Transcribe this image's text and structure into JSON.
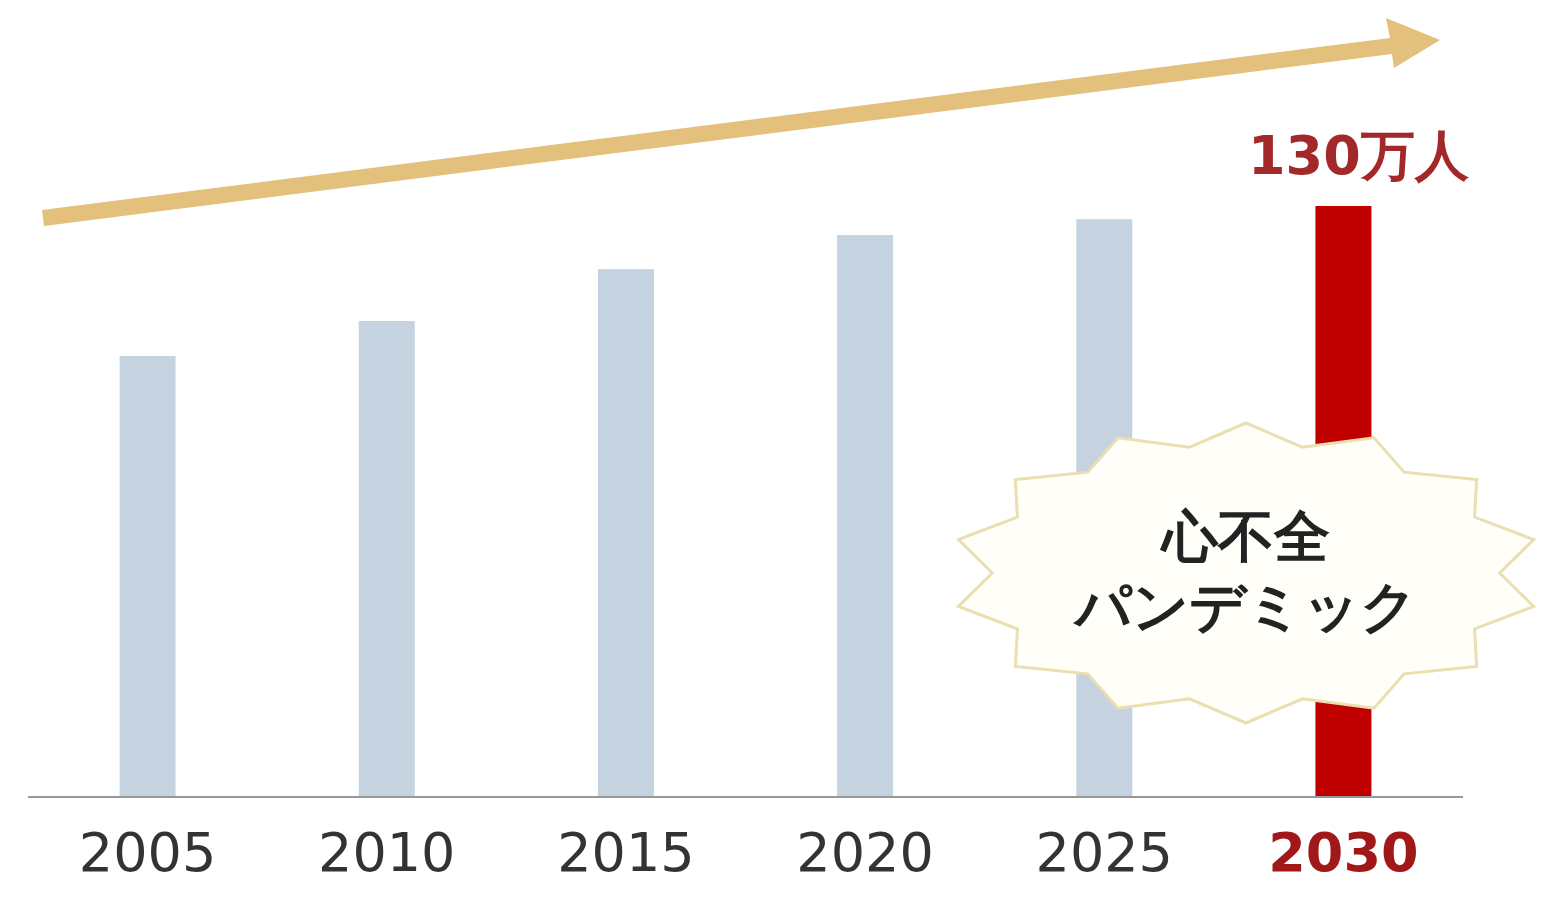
{
  "chart_data": {
    "type": "bar",
    "categories": [
      "2005",
      "2010",
      "2015",
      "2020",
      "2025",
      "2030"
    ],
    "values": [
      97,
      104.7,
      116.1,
      123.6,
      127.1,
      130
    ],
    "colors": [
      "#c5d3e0",
      "#c5d3e0",
      "#c5d3e0",
      "#c5d3e0",
      "#c5d3e0",
      "#c00000"
    ],
    "value_labels": [
      null,
      null,
      null,
      null,
      null,
      "130万人"
    ],
    "annotations": [
      "心不全",
      "パンデミック"
    ]
  }
}
